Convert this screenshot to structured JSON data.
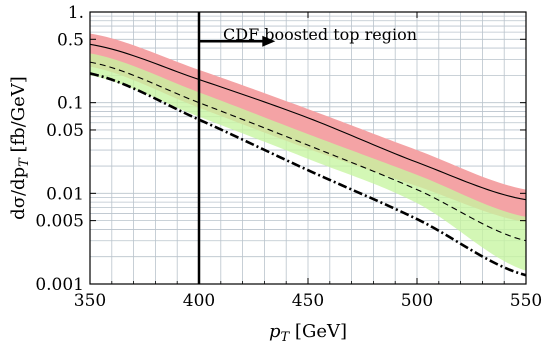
{
  "chart_data": {
    "type": "line",
    "title": "",
    "xlabel": "p_T [GeV]",
    "ylabel": "dσ/dp_T [fb/GeV]",
    "xlim": [
      350,
      550
    ],
    "ylim": [
      0.001,
      1
    ],
    "y_scale": "log",
    "grid": true,
    "x_ticks": [
      {
        "value": 350,
        "label": "350"
      },
      {
        "value": 400,
        "label": "400"
      },
      {
        "value": 450,
        "label": "450"
      },
      {
        "value": 500,
        "label": "500"
      },
      {
        "value": 550,
        "label": "550"
      }
    ],
    "y_ticks": [
      {
        "value": 0.001,
        "label": "0.001"
      },
      {
        "value": 0.005,
        "label": "0.005"
      },
      {
        "value": 0.01,
        "label": "0.01"
      },
      {
        "value": 0.05,
        "label": "0.05"
      },
      {
        "value": 0.1,
        "label": "0.1"
      },
      {
        "value": 0.5,
        "label": "0.5"
      },
      {
        "value": 1,
        "label": "1."
      }
    ],
    "x": [
      350,
      400,
      450,
      500,
      550
    ],
    "bands": [
      {
        "color": "#f4a3a5",
        "lower": [
          0.25,
          0.088,
          0.031,
          0.012,
          0.0048
        ],
        "upper": [
          0.58,
          0.23,
          0.085,
          0.03,
          0.011
        ]
      },
      {
        "color": "#c7f5a0",
        "lower": [
          0.2,
          0.07,
          0.024,
          0.0078,
          0.0014
        ],
        "upper": [
          0.35,
          0.13,
          0.045,
          0.016,
          0.0055
        ]
      }
    ],
    "series": [
      {
        "style": "solid",
        "values": [
          0.44,
          0.18,
          0.068,
          0.022,
          0.0085
        ]
      },
      {
        "style": "dashed",
        "values": [
          0.28,
          0.1,
          0.034,
          0.011,
          0.003
        ]
      },
      {
        "style": "dashdot",
        "values": [
          0.21,
          0.065,
          0.018,
          0.0052,
          0.00125
        ]
      }
    ],
    "vertical_line": {
      "x": 400
    },
    "annotations": [
      {
        "text": "CDF boosted top region",
        "arrow_from_x": 400,
        "arrow_to_x": 435,
        "arrow_y": 0.5
      }
    ],
    "colors": {
      "frame": "#000000",
      "grid": "#b9c3cc",
      "red_band": "#f4a3a5",
      "green_band": "#c7f5a0",
      "overlap": "#d9b98a"
    }
  }
}
